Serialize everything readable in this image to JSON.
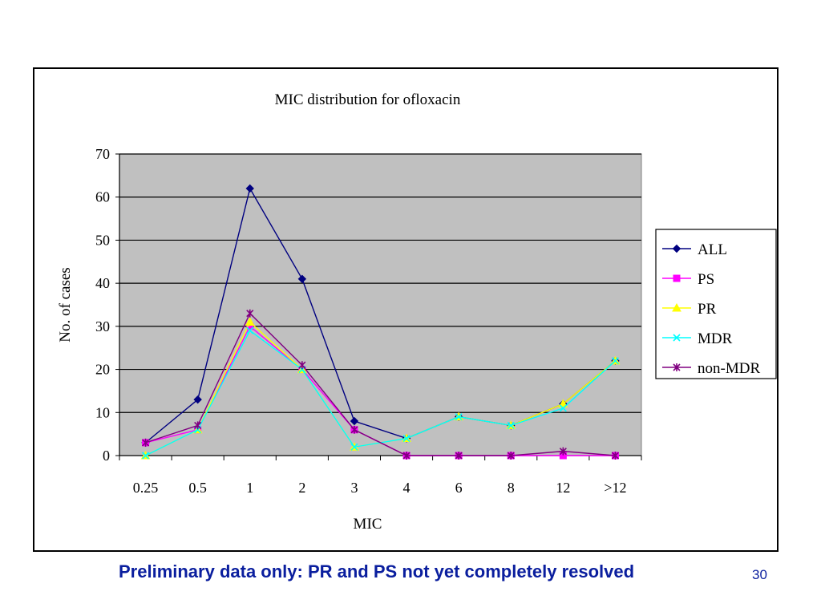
{
  "chart_data": {
    "type": "line",
    "title": "MIC distribution for ofloxacin",
    "xlabel": "MIC",
    "ylabel": "No. of cases",
    "categories": [
      "0.25",
      "0.5",
      "1",
      "2",
      "3",
      "4",
      "6",
      "8",
      "12",
      ">12"
    ],
    "ylim": [
      0,
      70
    ],
    "yticks": [
      0,
      10,
      20,
      30,
      40,
      50,
      60,
      70
    ],
    "grid": true,
    "legend_position": "right",
    "plot_background": "#c0c0c0",
    "series": [
      {
        "name": "ALL",
        "color": "#000080",
        "marker": "diamond",
        "values": [
          3,
          13,
          62,
          41,
          8,
          4,
          9,
          7,
          12,
          22
        ]
      },
      {
        "name": "PS",
        "color": "#ff00ff",
        "marker": "square",
        "values": [
          3,
          6,
          30,
          20,
          6,
          0,
          0,
          0,
          0,
          0
        ]
      },
      {
        "name": "PR",
        "color": "#ffff00",
        "marker": "triangle",
        "values": [
          0,
          6,
          31,
          20,
          2,
          4,
          9,
          7,
          12,
          22
        ]
      },
      {
        "name": "MDR",
        "color": "#00ffff",
        "marker": "x",
        "values": [
          0,
          6,
          29,
          20,
          2,
          4,
          9,
          7,
          11,
          22
        ]
      },
      {
        "name": "non-MDR",
        "color": "#800080",
        "marker": "star",
        "values": [
          3,
          7,
          33,
          21,
          6,
          0,
          0,
          0,
          1,
          0
        ]
      }
    ]
  },
  "footer": {
    "note": "Preliminary data only: PR and PS not yet completely resolved",
    "page_number": "30"
  }
}
